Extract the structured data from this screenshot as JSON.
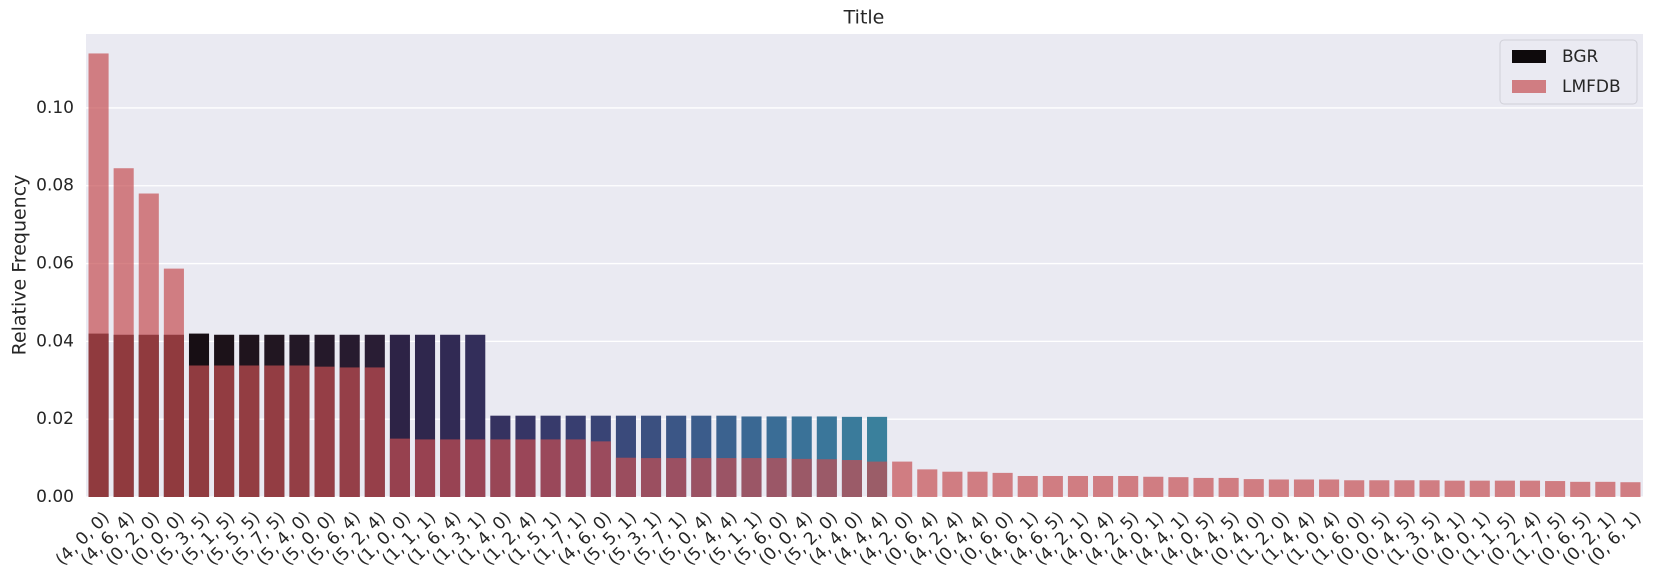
{
  "chart_data": {
    "type": "bar",
    "title": "Title",
    "y_label": "Relative Frequency",
    "categories": [
      "(4, 0, 0)",
      "(4, 6, 4)",
      "(0, 2, 0)",
      "(0, 0, 0)",
      "(5, 3, 5)",
      "(5, 1, 5)",
      "(5, 5, 5)",
      "(5, 7, 5)",
      "(5, 4, 0)",
      "(5, 0, 0)",
      "(5, 6, 4)",
      "(5, 2, 4)",
      "(1, 0, 0)",
      "(1, 1, 1)",
      "(1, 6, 4)",
      "(1, 3, 1)",
      "(1, 4, 0)",
      "(1, 2, 4)",
      "(1, 5, 1)",
      "(1, 7, 1)",
      "(4, 6, 0)",
      "(5, 5, 1)",
      "(5, 3, 1)",
      "(5, 7, 1)",
      "(5, 0, 4)",
      "(5, 4, 4)",
      "(5, 1, 1)",
      "(5, 6, 0)",
      "(0, 0, 4)",
      "(5, 2, 0)",
      "(4, 4, 0)",
      "(4, 4, 4)",
      "(4, 2, 0)",
      "(0, 6, 4)",
      "(4, 2, 4)",
      "(0, 4, 4)",
      "(0, 6, 0)",
      "(4, 6, 1)",
      "(4, 6, 5)",
      "(4, 2, 1)",
      "(4, 0, 4)",
      "(4, 2, 5)",
      "(4, 0, 1)",
      "(4, 4, 1)",
      "(4, 0, 5)",
      "(4, 4, 5)",
      "(0, 4, 0)",
      "(1, 2, 0)",
      "(1, 4, 4)",
      "(1, 0, 4)",
      "(1, 6, 0)",
      "(0, 0, 5)",
      "(0, 4, 5)",
      "(1, 3, 5)",
      "(0, 4, 1)",
      "(0, 0, 1)",
      "(1, 1, 5)",
      "(0, 2, 4)",
      "(1, 7, 5)",
      "(0, 6, 5)",
      "(0, 2, 1)",
      "(0, 6, 1)"
    ],
    "series": [
      {
        "name": "BGR",
        "color": "#0e0a0c",
        "bar_colors": [
          "#140c10",
          "#140c10",
          "#140c10",
          "#140c10",
          "#170e14",
          "#1c1219",
          "#1f141d",
          "#211621",
          "#231826",
          "#25192a",
          "#271b2f",
          "#291d34",
          "#2d2346",
          "#2f274d",
          "#312a54",
          "#332e5a",
          "#353260",
          "#363565",
          "#373a6b",
          "#383e70",
          "#394475",
          "#3a4a7b",
          "#3b5080",
          "#3b5686",
          "#3b5c8b",
          "#3b628f",
          "#3a6893",
          "#3a6d96",
          "#3a7298",
          "#3a769a",
          "#3a7b9b",
          "#3a809c"
        ],
        "values": [
          0.042,
          0.0417,
          0.0417,
          0.0417,
          0.042,
          0.0417,
          0.0417,
          0.0417,
          0.0417,
          0.0417,
          0.0417,
          0.0417,
          0.0417,
          0.0417,
          0.0417,
          0.0417,
          0.0209,
          0.0209,
          0.0209,
          0.0209,
          0.0209,
          0.0209,
          0.0209,
          0.0209,
          0.0209,
          0.0209,
          0.0207,
          0.0207,
          0.0207,
          0.0207,
          0.0206,
          0.0206,
          null,
          null,
          null,
          null,
          null,
          null,
          null,
          null,
          null,
          null,
          null,
          null,
          null,
          null,
          null,
          null,
          null,
          null,
          null,
          null,
          null,
          null,
          null,
          null,
          null,
          null,
          null,
          null,
          null,
          null
        ]
      },
      {
        "name": "LMFDB",
        "color": "#c44e52",
        "values": [
          0.114,
          0.0845,
          0.078,
          0.0587,
          0.0338,
          0.0338,
          0.0338,
          0.0338,
          0.0338,
          0.0335,
          0.0333,
          0.0333,
          0.015,
          0.0148,
          0.0148,
          0.0148,
          0.0148,
          0.0148,
          0.0148,
          0.0148,
          0.0143,
          0.0101,
          0.01,
          0.01,
          0.01,
          0.01,
          0.01,
          0.01,
          0.0098,
          0.0097,
          0.0095,
          0.0091,
          0.0091,
          0.0071,
          0.0065,
          0.0065,
          0.0062,
          0.0054,
          0.0054,
          0.0054,
          0.0054,
          0.0054,
          0.0052,
          0.0051,
          0.0049,
          0.0049,
          0.0046,
          0.0045,
          0.0045,
          0.0045,
          0.0043,
          0.0043,
          0.0043,
          0.0043,
          0.0042,
          0.0042,
          0.0042,
          0.0042,
          0.0041,
          0.0039,
          0.0039,
          0.0038
        ]
      }
    ],
    "ylim": [
      0,
      0.119
    ],
    "yticks": [
      {
        "value": 0,
        "label": "0.00"
      },
      {
        "value": 0.02,
        "label": "0.02"
      },
      {
        "value": 0.04,
        "label": "0.04"
      },
      {
        "value": 0.06,
        "label": "0.06"
      },
      {
        "value": 0.08,
        "label": "0.08"
      },
      {
        "value": 0.1,
        "label": "0.10"
      }
    ],
    "grid": true,
    "legend": "upper right",
    "overlay_opacity": 0.7
  }
}
